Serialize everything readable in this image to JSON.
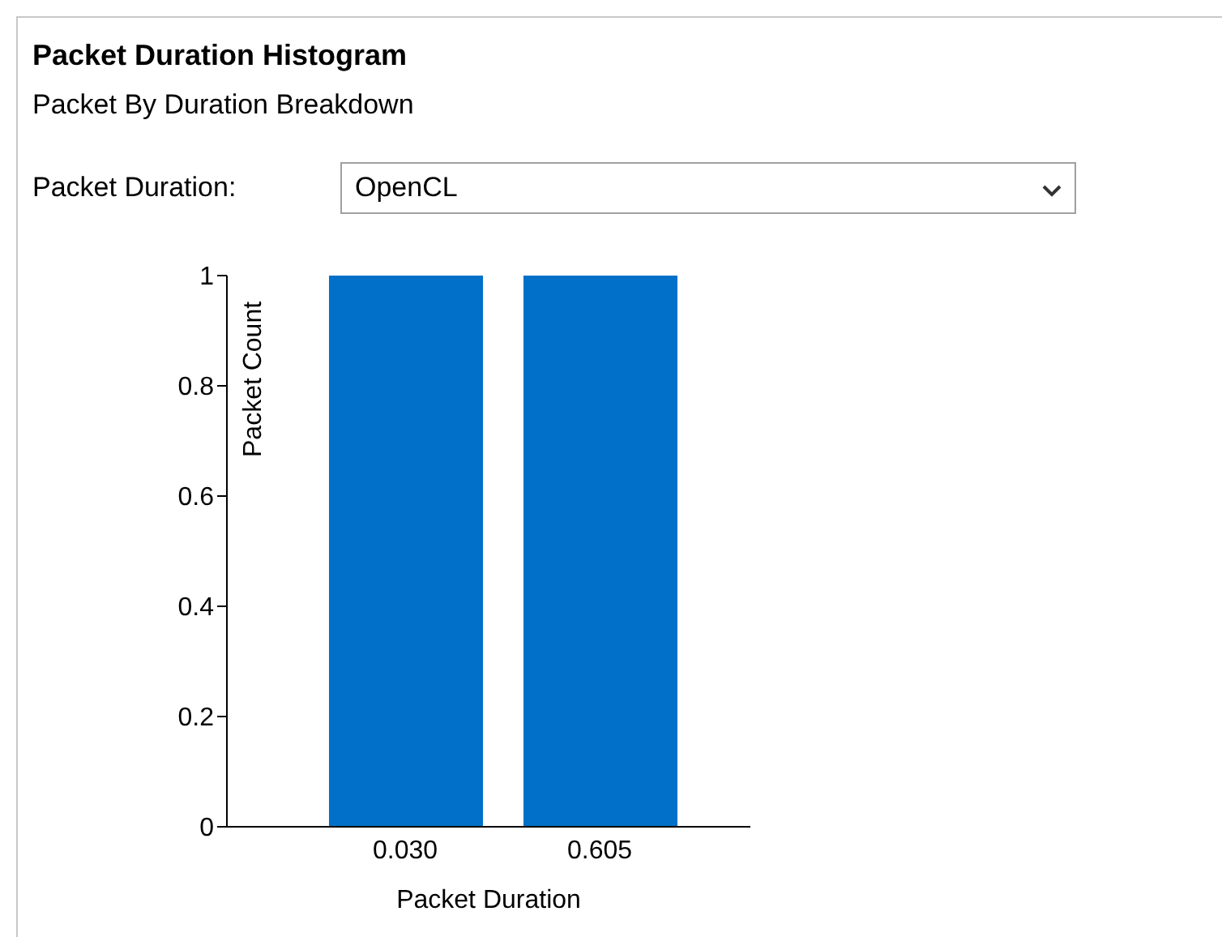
{
  "chart_data": {
    "type": "bar",
    "title": "Packet Duration Histogram",
    "subtitle": "Packet By Duration Breakdown",
    "annotations": [
      "Packet Duration:",
      "OpenCL"
    ],
    "xlabel": "Packet Duration",
    "ylabel": "Packet Count",
    "categories": [
      "0.030",
      "0.605"
    ],
    "values": [
      1,
      1
    ],
    "color": "#0070c8",
    "ylim": [
      0,
      1
    ],
    "yticks": [
      0,
      0.2,
      0.4,
      0.6,
      0.8,
      1
    ]
  }
}
